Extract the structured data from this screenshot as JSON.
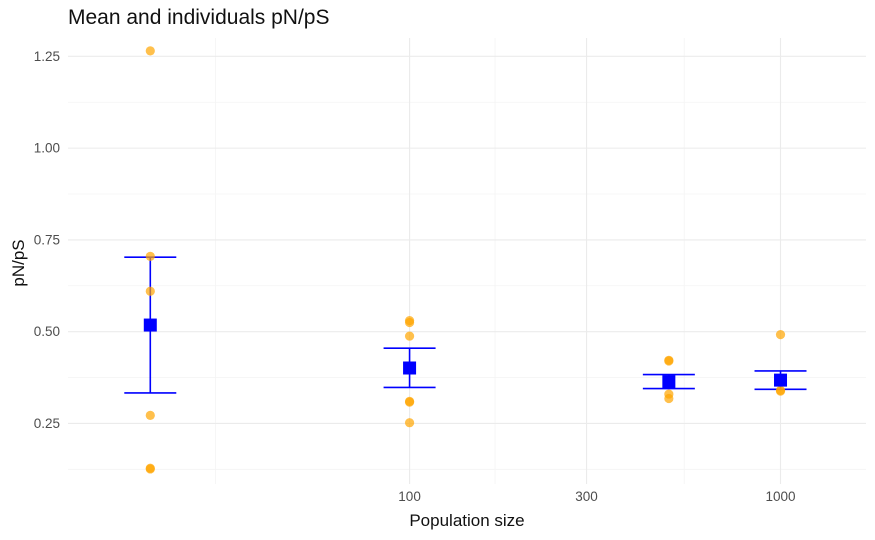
{
  "chart_data": {
    "type": "scatter",
    "title": "Mean and individuals pN/pS",
    "xlabel": "Population size",
    "ylabel": "pN/pS",
    "x_scale": "log10",
    "xlim": [
      12,
      1700
    ],
    "ylim": [
      0.085,
      1.3
    ],
    "x_ticks": [
      {
        "value": 100,
        "label": "100"
      },
      {
        "value": 300,
        "label": "300"
      },
      {
        "value": 1000,
        "label": "1000"
      }
    ],
    "x_minor_ticks": [
      30,
      170,
      550
    ],
    "y_ticks": [
      {
        "value": 0.25,
        "label": "0.25"
      },
      {
        "value": 0.5,
        "label": "0.50"
      },
      {
        "value": 0.75,
        "label": "0.75"
      },
      {
        "value": 1.0,
        "label": "1.00"
      },
      {
        "value": 1.25,
        "label": "1.25"
      }
    ],
    "y_minor_ticks": [
      0.125,
      0.375,
      0.625,
      0.875,
      1.125
    ],
    "grid": true,
    "colors": {
      "individual": "#FFA500",
      "mean": "#0000FF"
    },
    "individuals": [
      {
        "x": 20,
        "y": 1.265
      },
      {
        "x": 20,
        "y": 0.705
      },
      {
        "x": 20,
        "y": 0.61
      },
      {
        "x": 20,
        "y": 0.272
      },
      {
        "x": 20,
        "y": 0.128
      },
      {
        "x": 20,
        "y": 0.126
      },
      {
        "x": 100,
        "y": 0.53
      },
      {
        "x": 100,
        "y": 0.525
      },
      {
        "x": 100,
        "y": 0.488
      },
      {
        "x": 100,
        "y": 0.31
      },
      {
        "x": 100,
        "y": 0.308
      },
      {
        "x": 100,
        "y": 0.252
      },
      {
        "x": 500,
        "y": 0.422
      },
      {
        "x": 500,
        "y": 0.42
      },
      {
        "x": 500,
        "y": 0.33
      },
      {
        "x": 500,
        "y": 0.318
      },
      {
        "x": 1000,
        "y": 0.492
      },
      {
        "x": 1000,
        "y": 0.34
      },
      {
        "x": 1000,
        "y": 0.338
      }
    ],
    "means": [
      {
        "x": 20,
        "mean": 0.518,
        "lower": 0.333,
        "upper": 0.703
      },
      {
        "x": 100,
        "mean": 0.401,
        "lower": 0.348,
        "upper": 0.455
      },
      {
        "x": 500,
        "mean": 0.364,
        "lower": 0.345,
        "upper": 0.383
      },
      {
        "x": 1000,
        "mean": 0.368,
        "lower": 0.343,
        "upper": 0.393
      }
    ]
  }
}
